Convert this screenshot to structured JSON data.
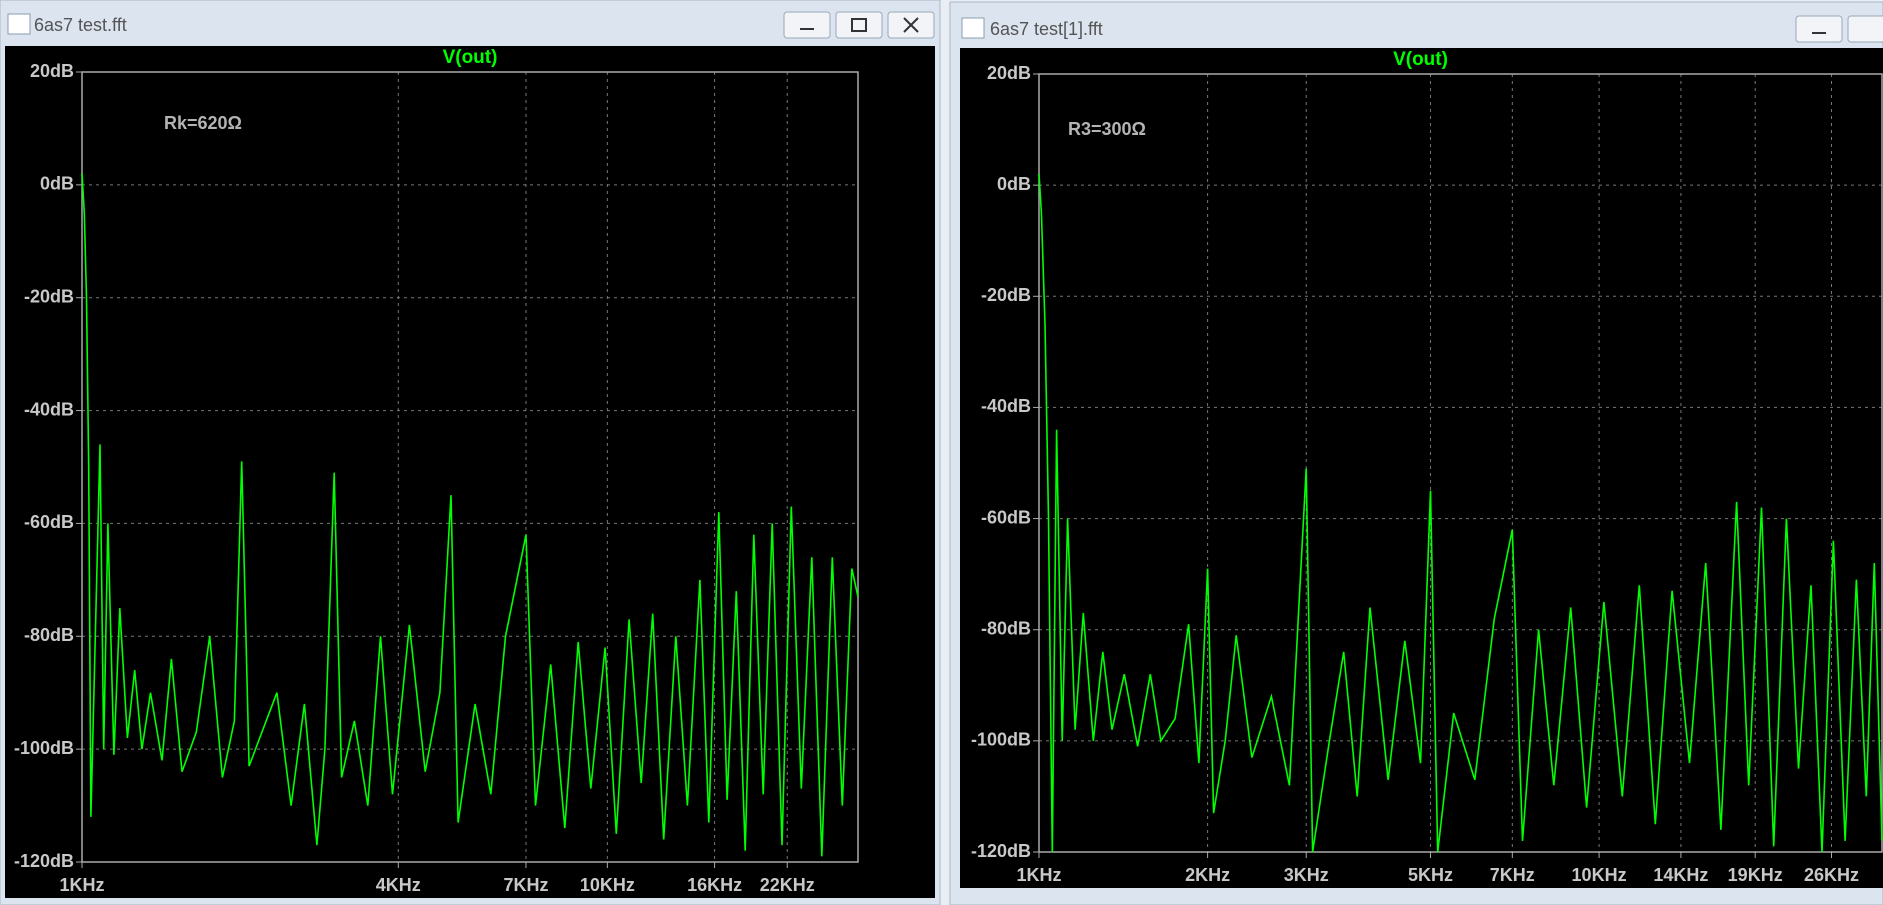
{
  "chart_data": [
    {
      "type": "line",
      "window_title": "6as7 test.fft",
      "title": "V(out)",
      "annotation": "Rk=620Ω",
      "log_x": true,
      "grid": true,
      "color": "#00ff00",
      "xlim": [
        1000,
        30000
      ],
      "xticks": [
        {
          "value": 1000,
          "label": "1KHz"
        },
        {
          "value": 4000,
          "label": "4KHz"
        },
        {
          "value": 7000,
          "label": "7KHz"
        },
        {
          "value": 10000,
          "label": "10KHz"
        },
        {
          "value": 16000,
          "label": "16KHz"
        },
        {
          "value": 22000,
          "label": "22KHz"
        }
      ],
      "ylim": [
        -120,
        20
      ],
      "yticks": [
        {
          "value": 20,
          "label": "20dB"
        },
        {
          "value": 0,
          "label": "0dB"
        },
        {
          "value": -20,
          "label": "-20dB"
        },
        {
          "value": -40,
          "label": "-40dB"
        },
        {
          "value": -60,
          "label": "-60dB"
        },
        {
          "value": -80,
          "label": "-80dB"
        },
        {
          "value": -100,
          "label": "-100dB"
        },
        {
          "value": -120,
          "label": "-120dB"
        }
      ],
      "x": [
        1000,
        1010,
        1020,
        1030,
        1040,
        1060,
        1082,
        1100,
        1120,
        1150,
        1180,
        1220,
        1260,
        1300,
        1350,
        1420,
        1480,
        1550,
        1650,
        1750,
        1850,
        1950,
        2014,
        2080,
        2200,
        2350,
        2500,
        2650,
        2800,
        2900,
        3020,
        3120,
        3300,
        3500,
        3700,
        3900,
        4200,
        4500,
        4800,
        5040,
        5200,
        5600,
        6000,
        6400,
        7000,
        7300,
        7800,
        8300,
        8800,
        9300,
        9900,
        10400,
        11000,
        11600,
        12200,
        12800,
        13500,
        14200,
        15000,
        15600,
        16300,
        16900,
        17600,
        18300,
        19000,
        19800,
        20600,
        21500,
        22400,
        23400,
        24500,
        25600,
        26800,
        28000,
        29200,
        30000
      ],
      "values": [
        2,
        -5,
        -20,
        -50,
        -112,
        -80,
        -46,
        -100,
        -60,
        -101,
        -75,
        -98,
        -86,
        -100,
        -90,
        -102,
        -84,
        -104,
        -97,
        -80,
        -105,
        -95,
        -49,
        -103,
        -97,
        -90,
        -110,
        -92,
        -117,
        -100,
        -51,
        -105,
        -95,
        -110,
        -80,
        -108,
        -78,
        -104,
        -90,
        -55,
        -113,
        -92,
        -108,
        -80,
        -62,
        -110,
        -85,
        -114,
        -81,
        -107,
        -82,
        -115,
        -77,
        -106,
        -76,
        -116,
        -80,
        -110,
        -70,
        -113,
        -58,
        -109,
        -72,
        -118,
        -62,
        -108,
        -60,
        -117,
        -57,
        -107,
        -66,
        -119,
        -66,
        -110,
        -68,
        -73
      ]
    },
    {
      "type": "line",
      "window_title": "6as7 test[1].fft",
      "title": "V(out)",
      "annotation": "R3=300Ω",
      "log_x": true,
      "grid": true,
      "color": "#00ff00",
      "xlim": [
        1000,
        32000
      ],
      "xticks": [
        {
          "value": 1000,
          "label": "1KHz"
        },
        {
          "value": 2000,
          "label": "2KHz"
        },
        {
          "value": 3000,
          "label": "3KHz"
        },
        {
          "value": 5000,
          "label": "5KHz"
        },
        {
          "value": 7000,
          "label": "7KHz"
        },
        {
          "value": 10000,
          "label": "10KHz"
        },
        {
          "value": 14000,
          "label": "14KHz"
        },
        {
          "value": 19000,
          "label": "19KHz"
        },
        {
          "value": 26000,
          "label": "26KHz"
        }
      ],
      "ylim": [
        -120,
        20
      ],
      "yticks": [
        {
          "value": 20,
          "label": "20dB"
        },
        {
          "value": 0,
          "label": "0dB"
        },
        {
          "value": -20,
          "label": "-20dB"
        },
        {
          "value": -40,
          "label": "-40dB"
        },
        {
          "value": -60,
          "label": "-60dB"
        },
        {
          "value": -80,
          "label": "-80dB"
        },
        {
          "value": -100,
          "label": "-100dB"
        },
        {
          "value": -120,
          "label": "-120dB"
        }
      ],
      "x": [
        1000,
        1010,
        1025,
        1040,
        1056,
        1075,
        1100,
        1125,
        1160,
        1200,
        1250,
        1300,
        1350,
        1420,
        1500,
        1580,
        1650,
        1750,
        1850,
        1930,
        2000,
        2050,
        2150,
        2250,
        2400,
        2600,
        2800,
        3000,
        3080,
        3300,
        3500,
        3700,
        3900,
        4200,
        4500,
        4800,
        5000,
        5150,
        5500,
        6000,
        6500,
        7000,
        7300,
        7800,
        8300,
        8900,
        9500,
        10200,
        11000,
        11800,
        12600,
        13500,
        14500,
        15500,
        16500,
        17600,
        18500,
        19500,
        20500,
        21600,
        22700,
        23900,
        25000,
        26200,
        27500,
        28800,
        30000,
        31000,
        32000
      ],
      "values": [
        2,
        -5,
        -25,
        -60,
        -120,
        -44,
        -100,
        -60,
        -98,
        -77,
        -100,
        -84,
        -98,
        -88,
        -101,
        -88,
        -100,
        -96,
        -79,
        -104,
        -69,
        -113,
        -100,
        -81,
        -103,
        -92,
        -108,
        -51,
        -120,
        -100,
        -84,
        -110,
        -76,
        -107,
        -82,
        -104,
        -55,
        -120,
        -95,
        -107,
        -78,
        -62,
        -118,
        -80,
        -108,
        -76,
        -112,
        -75,
        -110,
        -72,
        -115,
        -73,
        -104,
        -68,
        -116,
        -57,
        -108,
        -58,
        -119,
        -60,
        -105,
        -72,
        -120,
        -64,
        -118,
        -71,
        -110,
        -68,
        -118
      ]
    }
  ]
}
